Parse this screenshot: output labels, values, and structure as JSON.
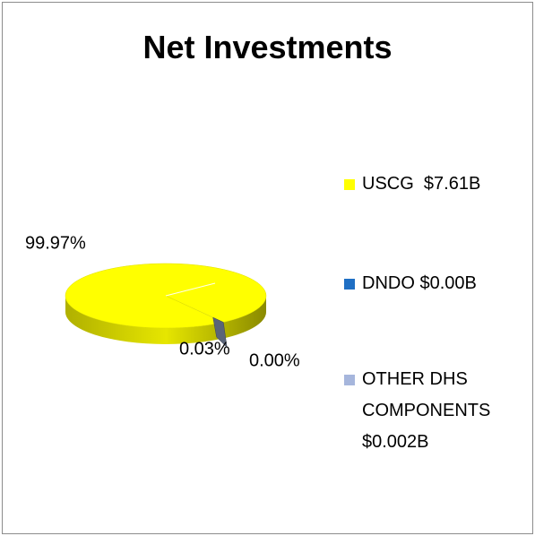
{
  "chart_data": {
    "type": "pie3d",
    "title": "Net Investments",
    "series": [
      {
        "name": "USCG  $7.61B",
        "color": "#ffff00",
        "value": 99.97,
        "value_label": "99.97%"
      },
      {
        "name": "DNDO $0.00B",
        "color": "#1f6fc4",
        "value": 0.0,
        "value_label": "0.00%"
      },
      {
        "name": "OTHER DHS COMPONENTS $0.002B",
        "color": "#a6b6dc",
        "value": 0.03,
        "value_label": "0.03%"
      }
    ]
  }
}
